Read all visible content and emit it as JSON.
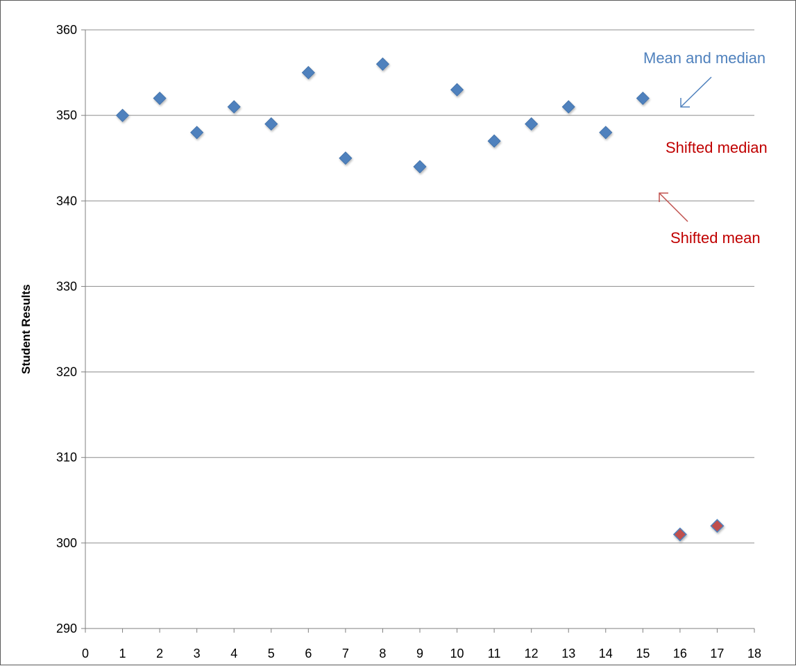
{
  "chart_data": {
    "type": "scatter",
    "ylabel": "Student Results",
    "xlabel": "",
    "title": "",
    "xlim": [
      0,
      18
    ],
    "ylim": [
      290,
      360
    ],
    "x_ticks": [
      "0",
      "1",
      "2",
      "3",
      "4",
      "5",
      "6",
      "7",
      "8",
      "9",
      "10",
      "11",
      "12",
      "13",
      "14",
      "15",
      "16",
      "17",
      "18"
    ],
    "y_ticks": [
      "290",
      "300",
      "310",
      "320",
      "330",
      "340",
      "350",
      "360"
    ],
    "grid": true,
    "series": [
      {
        "color": "#4f81bd",
        "marker": "diamond",
        "points": [
          {
            "x": 1,
            "y": 350
          },
          {
            "x": 2,
            "y": 352
          },
          {
            "x": 3,
            "y": 348
          },
          {
            "x": 4,
            "y": 351
          },
          {
            "x": 5,
            "y": 349
          },
          {
            "x": 6,
            "y": 355
          },
          {
            "x": 7,
            "y": 345
          },
          {
            "x": 8,
            "y": 356
          },
          {
            "x": 9,
            "y": 344
          },
          {
            "x": 10,
            "y": 353
          },
          {
            "x": 11,
            "y": 347
          },
          {
            "x": 12,
            "y": 349
          },
          {
            "x": 13,
            "y": 351
          },
          {
            "x": 14,
            "y": 348
          },
          {
            "x": 15,
            "y": 352
          }
        ]
      },
      {
        "color": "#c0504d",
        "marker": "diamond",
        "points": [
          {
            "x": 16,
            "y": 301
          },
          {
            "x": 17,
            "y": 302
          }
        ]
      }
    ],
    "reference_lines": [
      {
        "label": "Mean and median",
        "y": 350.1,
        "x_range": [
          0.5,
          16.5
        ],
        "color": "#4f81bd",
        "style": "solid"
      },
      {
        "label": "Shifted median",
        "y": 348.8,
        "x_range": [
          0.5,
          16.5
        ],
        "color": "#c0504d",
        "style": "dashed"
      },
      {
        "label": "Shifted mean",
        "y": 342.7,
        "x_range": [
          0.5,
          16.5
        ],
        "color": "#c0504d",
        "style": "solid"
      }
    ],
    "annotations": [
      {
        "text": "Mean and median",
        "color": "#4f81bd"
      },
      {
        "text": "Shifted median",
        "color": "#c00000"
      },
      {
        "text": "Shifted mean",
        "color": "#c00000"
      }
    ]
  }
}
